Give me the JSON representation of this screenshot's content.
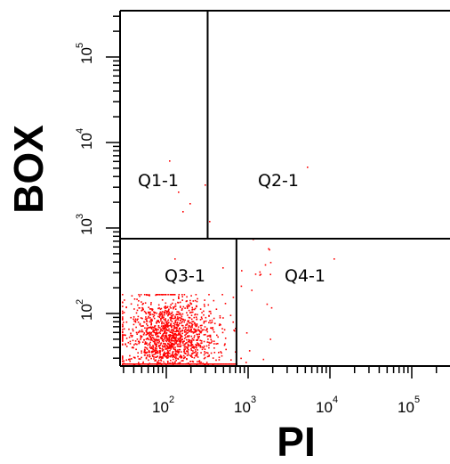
{
  "chart_data": {
    "type": "scatter",
    "xlabel": "PI",
    "ylabel": "BOX",
    "x_scale": "log",
    "y_scale": "log",
    "x_ticks": [
      {
        "value": 100,
        "base": "10",
        "exp": "2"
      },
      {
        "value": 1000,
        "base": "10",
        "exp": "3"
      },
      {
        "value": 10000,
        "base": "10",
        "exp": "4"
      },
      {
        "value": 100000,
        "base": "10",
        "exp": "5"
      }
    ],
    "y_ticks": [
      {
        "value": 100,
        "base": "10",
        "exp": "2"
      },
      {
        "value": 1000,
        "base": "10",
        "exp": "3"
      },
      {
        "value": 10000,
        "base": "10",
        "exp": "4"
      },
      {
        "value": 100000,
        "base": "10",
        "exp": "5"
      }
    ],
    "gates": {
      "x_split_upper": 320,
      "x_split_lower": 720,
      "y_split": 750
    },
    "quadrants": [
      "Q1-1",
      "Q2-1",
      "Q3-1",
      "Q4-1"
    ],
    "point_color": "#ff0000",
    "population": {
      "main_cluster": {
        "x_center": 110,
        "y_center": 55,
        "n": 1500
      },
      "q4_sparse": {
        "n": 20
      },
      "q1_sparse": {
        "n": 8
      },
      "q2_sparse": {
        "n": 3
      }
    }
  }
}
